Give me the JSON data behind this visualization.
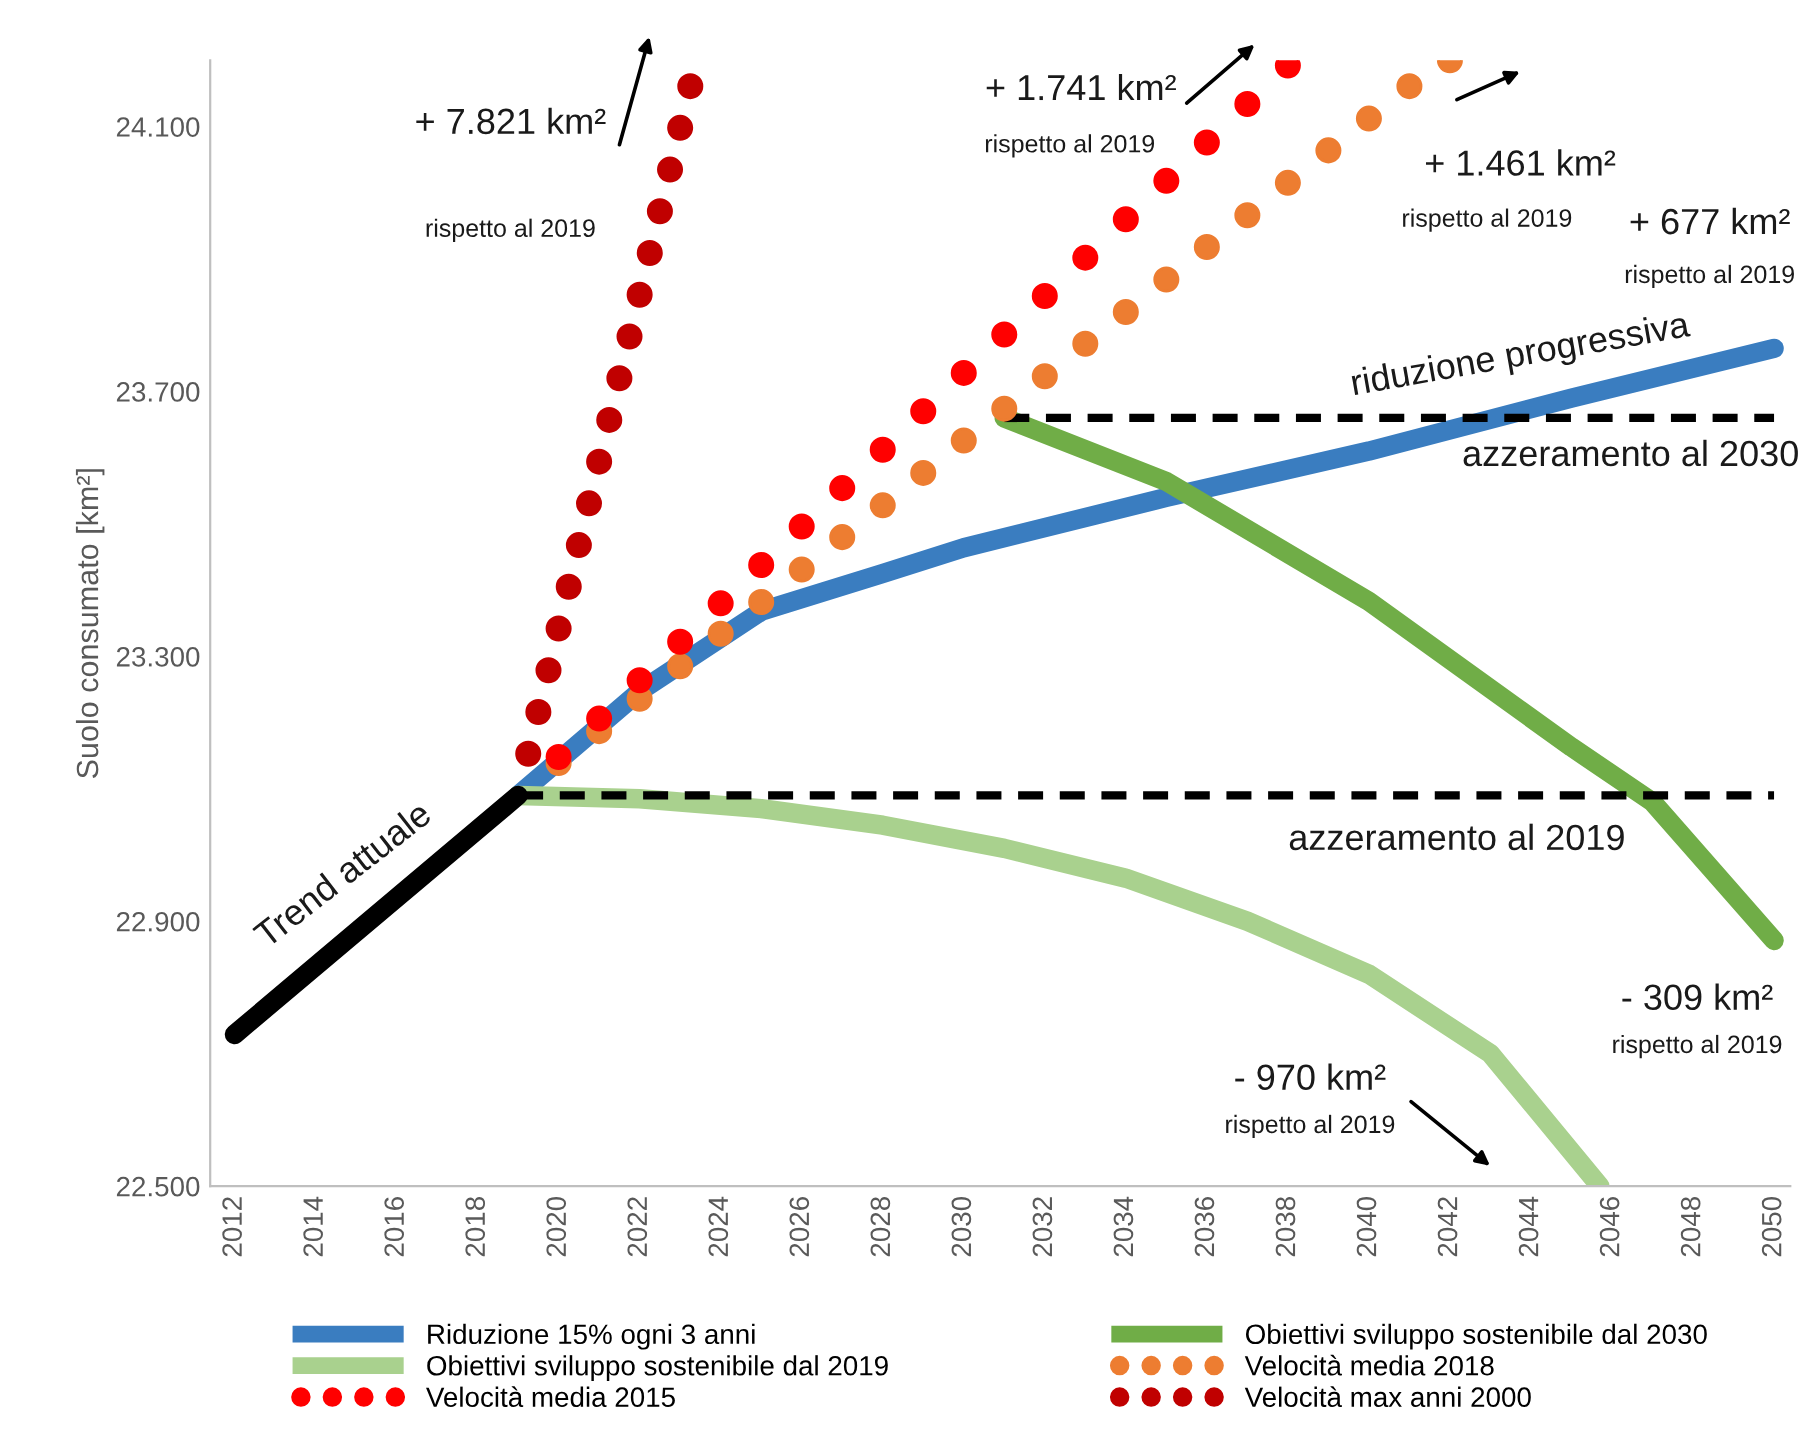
{
  "chart_data": {
    "type": "line",
    "ylabel": "Suolo consumato [km²]",
    "xlim": [
      2011.4,
      2050.4
    ],
    "ylim": [
      22500,
      24200
    ],
    "xticks": [
      2012,
      2014,
      2016,
      2018,
      2020,
      2022,
      2024,
      2026,
      2028,
      2030,
      2032,
      2034,
      2036,
      2038,
      2040,
      2042,
      2044,
      2046,
      2048,
      2050
    ],
    "yticks": [
      {
        "value": 22500,
        "label": "22.500"
      },
      {
        "value": 22900,
        "label": "22.900"
      },
      {
        "value": 23300,
        "label": "23.300"
      },
      {
        "value": 23700,
        "label": "23.700"
      },
      {
        "value": 24100,
        "label": "24.100"
      }
    ],
    "grid": false,
    "legend": "bottom",
    "series": [
      {
        "name": "Riduzione 15% ogni 3 anni",
        "color": "#3a7dc0",
        "line_style": "solid",
        "x": [
          2019,
          2022,
          2025,
          2028,
          2030,
          2035,
          2040,
          2045,
          2050
        ],
        "values": [
          23090,
          23247,
          23368,
          23425,
          23464,
          23540,
          23610,
          23690,
          23765
        ]
      },
      {
        "name": "Obiettivi sviluppo sostenibile dal 2019",
        "color": "#a9d18e",
        "line_style": "solid",
        "x": [
          2019,
          2022,
          2025,
          2028,
          2031,
          2034,
          2037,
          2040,
          2043,
          2045.7
        ],
        "values": [
          23090,
          23085,
          23070,
          23045,
          23010,
          22965,
          22900,
          22820,
          22700,
          22500
        ]
      },
      {
        "name": "Velocità media 2015",
        "color": "#ff0000",
        "type": "scatter",
        "marker": "circle",
        "x": [
          2020,
          2021,
          2022,
          2023,
          2024,
          2025,
          2026,
          2027,
          2028,
          2029,
          2030,
          2031,
          2032,
          2033,
          2034,
          2035,
          2036,
          2037,
          2038
        ],
        "values": [
          23148,
          23206,
          23264,
          23322,
          23380,
          23438,
          23496,
          23554,
          23612,
          23670,
          23728,
          23786,
          23844,
          23902,
          23960,
          24018,
          24076,
          24134,
          24192
        ]
      },
      {
        "name": "Obiettivi sviluppo sostenibile dal 2030",
        "color": "#70ad47",
        "line_style": "solid",
        "x": [
          2031,
          2035,
          2040,
          2045,
          2047,
          2050
        ],
        "values": [
          23660,
          23564,
          23383,
          23163,
          23080,
          22871
        ]
      },
      {
        "name": "Velocità media 2018",
        "color": "#ed7d31",
        "type": "scatter",
        "marker": "circle",
        "x": [
          2020,
          2021,
          2022,
          2023,
          2024,
          2025,
          2026,
          2027,
          2028,
          2029,
          2030,
          2031,
          2032,
          2033,
          2034,
          2035,
          2036,
          2037,
          2038,
          2039,
          2040,
          2041,
          2042
        ],
        "values": [
          23139,
          23187,
          23236,
          23285,
          23334,
          23382,
          23431,
          23480,
          23528,
          23577,
          23626,
          23674,
          23723,
          23772,
          23820,
          23869,
          23918,
          23966,
          24015,
          24064,
          24112,
          24161,
          24200
        ]
      },
      {
        "name": "Velocità max anni 2000",
        "color": "#c00000",
        "type": "scatter",
        "marker": "circle",
        "x": [
          2019.25,
          2019.5,
          2019.75,
          2020,
          2020.25,
          2020.5,
          2020.75,
          2021,
          2021.25,
          2021.5,
          2021.75,
          2022,
          2022.25,
          2022.5,
          2022.75,
          2023,
          2023.25
        ],
        "values": [
          23153,
          23216,
          23279,
          23342,
          23405,
          23468,
          23531,
          23594,
          23657,
          23720,
          23783,
          23846,
          23909,
          23972,
          24035,
          24098,
          24161
        ]
      },
      {
        "color": "#000000",
        "line_style": "solid",
        "x": [
          2012,
          2019
        ],
        "values": [
          22729,
          23090
        ]
      },
      {
        "color": "#000000",
        "line_style": "dashed",
        "x": [
          2019,
          2050
        ],
        "values": [
          23090,
          23090
        ]
      },
      {
        "color": "#000000",
        "line_style": "dashed",
        "x": [
          2031,
          2050
        ],
        "values": [
          23660,
          23660
        ]
      }
    ],
    "annotations": [
      "+ 7.821 km²",
      "rispetto al 2019",
      "+ 1.741 km²",
      "rispetto al 2019",
      "+ 1.461 km²",
      "rispetto al 2019",
      "+ 677 km²",
      "rispetto al 2019",
      "riduzione progressiva",
      "azzeramento al 2030",
      "azzeramento al 2019",
      "Trend attuale",
      "- 309 km²",
      "rispetto al 2019",
      "- 970 km²",
      "rispetto al 2019"
    ]
  }
}
